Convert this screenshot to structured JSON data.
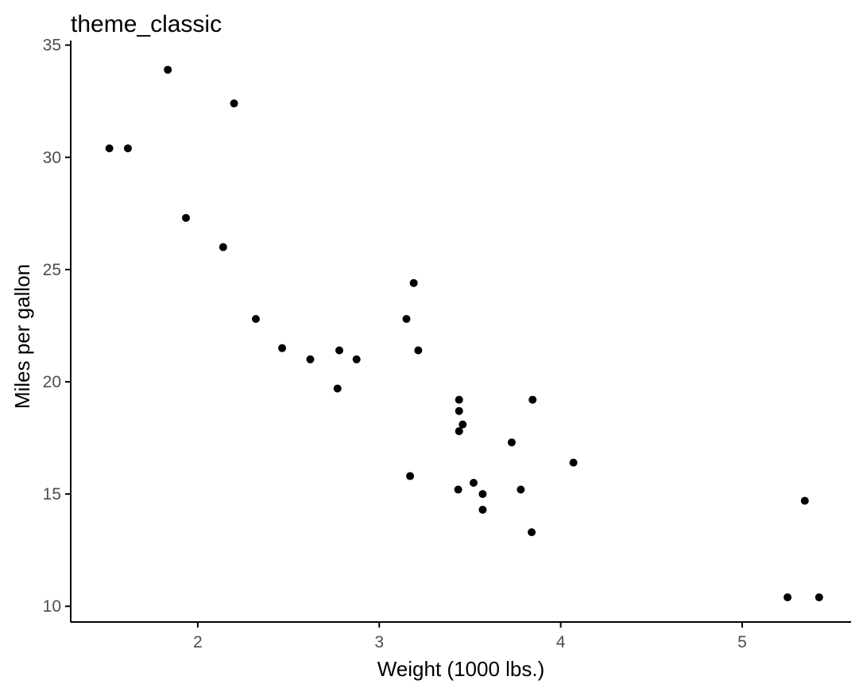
{
  "chart_data": {
    "type": "scatter",
    "title": "theme_classic",
    "xlabel": "Weight (1000 lbs.)",
    "ylabel": "Miles per gallon",
    "xlim": [
      1.3,
      5.6
    ],
    "ylim": [
      9.3,
      35.2
    ],
    "x_ticks": [
      2,
      3,
      4,
      5
    ],
    "y_ticks": [
      10,
      15,
      20,
      25,
      30,
      35
    ],
    "grid": false,
    "legend": "none",
    "point_color": "#000000",
    "axis_color": "#000000",
    "tick_label_color": "#4d4d4d",
    "points": [
      {
        "x": 2.62,
        "y": 21.0
      },
      {
        "x": 2.875,
        "y": 21.0
      },
      {
        "x": 2.32,
        "y": 22.8
      },
      {
        "x": 3.215,
        "y": 21.4
      },
      {
        "x": 3.44,
        "y": 18.7
      },
      {
        "x": 3.46,
        "y": 18.1
      },
      {
        "x": 3.57,
        "y": 14.3
      },
      {
        "x": 3.19,
        "y": 24.4
      },
      {
        "x": 3.15,
        "y": 22.8
      },
      {
        "x": 3.44,
        "y": 19.2
      },
      {
        "x": 3.44,
        "y": 17.8
      },
      {
        "x": 4.07,
        "y": 16.4
      },
      {
        "x": 3.73,
        "y": 17.3
      },
      {
        "x": 3.78,
        "y": 15.2
      },
      {
        "x": 5.25,
        "y": 10.4
      },
      {
        "x": 5.424,
        "y": 10.4
      },
      {
        "x": 5.345,
        "y": 14.7
      },
      {
        "x": 2.2,
        "y": 32.4
      },
      {
        "x": 1.615,
        "y": 30.4
      },
      {
        "x": 1.835,
        "y": 33.9
      },
      {
        "x": 2.465,
        "y": 21.5
      },
      {
        "x": 3.52,
        "y": 15.5
      },
      {
        "x": 3.435,
        "y": 15.2
      },
      {
        "x": 3.84,
        "y": 13.3
      },
      {
        "x": 3.845,
        "y": 19.2
      },
      {
        "x": 1.935,
        "y": 27.3
      },
      {
        "x": 2.14,
        "y": 26.0
      },
      {
        "x": 1.513,
        "y": 30.4
      },
      {
        "x": 3.17,
        "y": 15.8
      },
      {
        "x": 2.77,
        "y": 19.7
      },
      {
        "x": 3.57,
        "y": 15.0
      },
      {
        "x": 2.78,
        "y": 21.4
      }
    ]
  }
}
